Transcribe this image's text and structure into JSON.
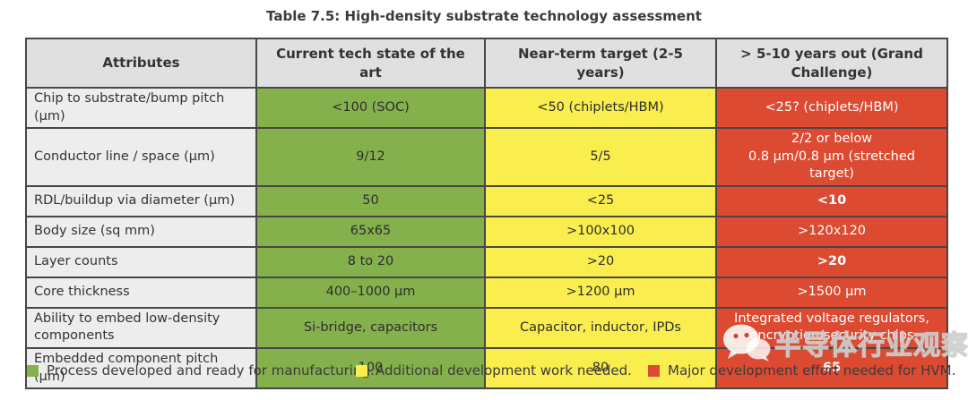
{
  "title": "Table 7.5: High-density substrate technology assessment",
  "table": {
    "columns": [
      "Attributes",
      "Current tech state of the art",
      "Near-term target (2-5 years)",
      "> 5-10 years out (Grand Challenge)"
    ],
    "rows": [
      {
        "attribute": "Chip to substrate/bump pitch (μm)",
        "current": "<100 (SOC)",
        "near_term": "<50 (chiplets/HBM)",
        "long_term": "<25? (chiplets/HBM)",
        "long_term_bold": false
      },
      {
        "attribute": "Conductor line / space (μm)",
        "current": "9/12",
        "near_term": "5/5",
        "long_term": "2/2 or below\n0.8 μm/0.8 μm (stretched target)",
        "long_term_bold": false
      },
      {
        "attribute": "RDL/buildup via diameter (μm)",
        "current": "50",
        "near_term": "<25",
        "long_term": "<10",
        "long_term_bold": true
      },
      {
        "attribute": "Body size (sq mm)",
        "current": "65x65",
        "near_term": ">100x100",
        "long_term": ">120x120",
        "long_term_bold": false
      },
      {
        "attribute": "Layer counts",
        "current": "8 to 20",
        "near_term": ">20",
        "long_term": ">20",
        "long_term_bold": true
      },
      {
        "attribute": "Core thickness",
        "current": "400–1000 μm",
        "near_term": ">1200 μm",
        "long_term": ">1500 μm",
        "long_term_bold": false
      },
      {
        "attribute": "Ability to embed low-density components",
        "current": "Si-bridge, capacitors",
        "near_term": "Capacitor, inductor, IPDs",
        "long_term": "Integrated voltage regulators,\nencryption/security chips",
        "long_term_bold": false
      },
      {
        "attribute": "Embedded component pitch (μm)",
        "current": "100",
        "near_term": "80",
        "long_term": "65",
        "long_term_bold": true
      }
    ]
  },
  "legend": [
    {
      "color": "#85b14c",
      "label": "Process developed and ready for manufacturing."
    },
    {
      "color": "#faee4e",
      "label": "Additional development work needed."
    },
    {
      "color": "#dc4a32",
      "label": "Major development effort needed for HVM."
    }
  ],
  "watermark": {
    "text": "半导体行业观察",
    "logo": "wechat-logo"
  },
  "colors": {
    "green": "#85b14c",
    "yellow": "#faee4e",
    "red": "#dc4a32",
    "header_bg": "#e0e0e0",
    "attribute_bg": "#ededed",
    "border": "#474747"
  }
}
